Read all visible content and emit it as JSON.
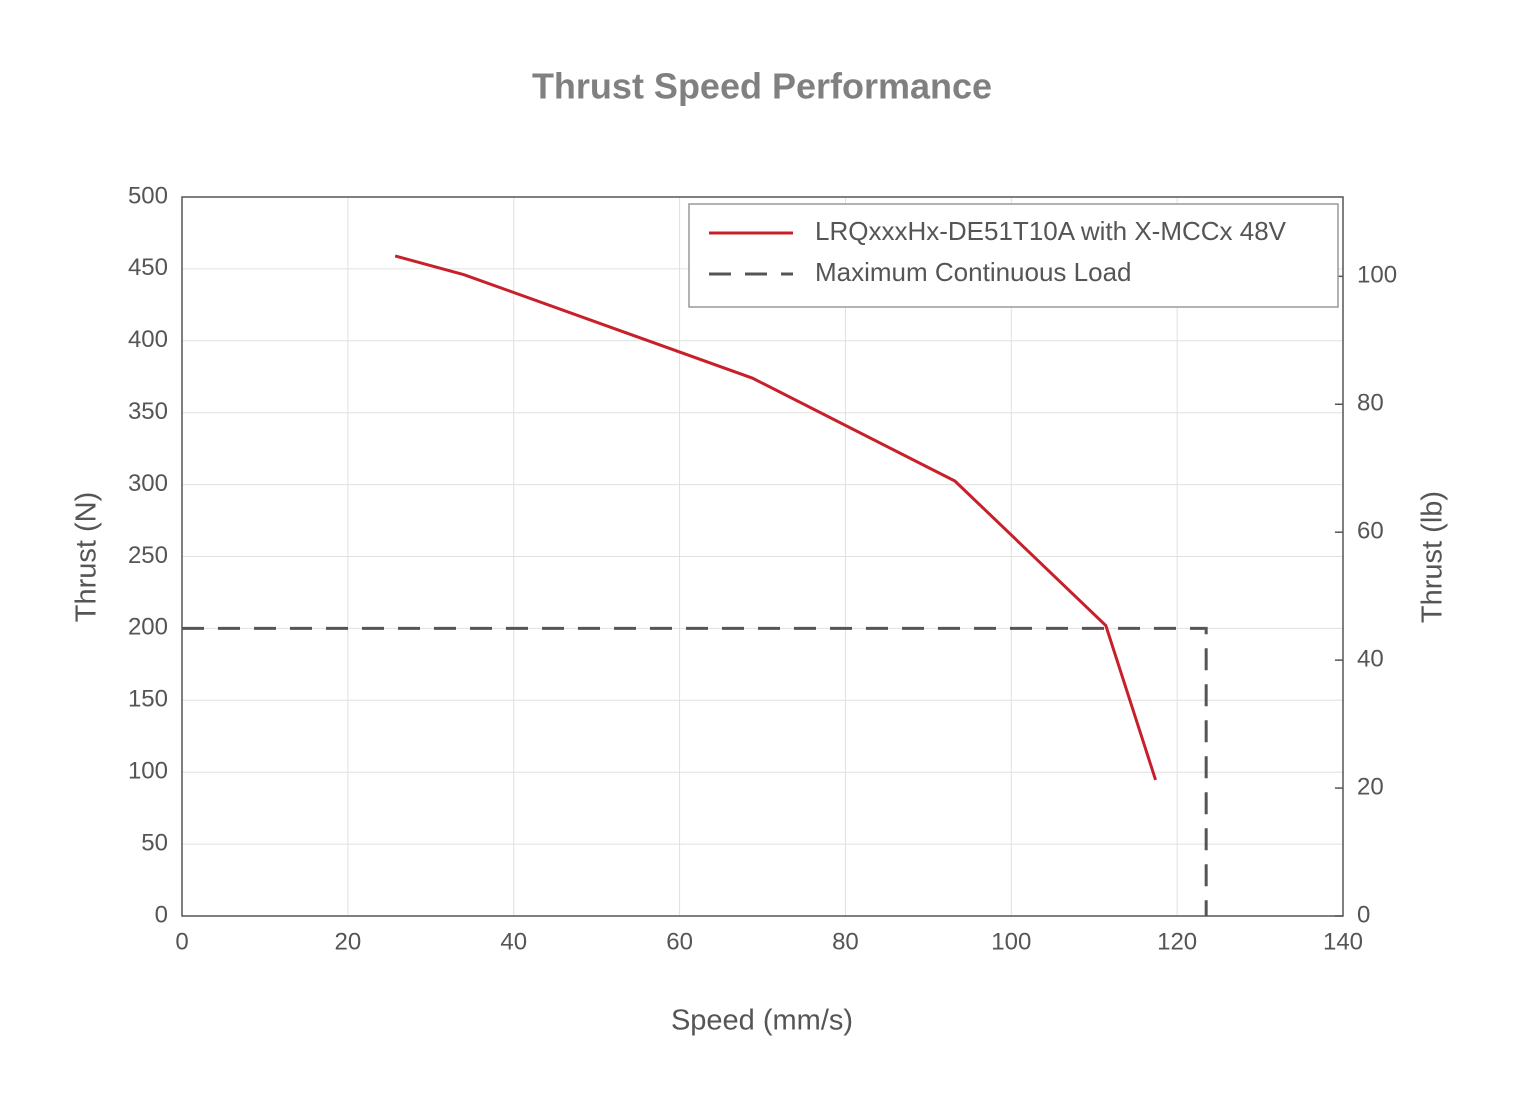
{
  "chart_data": {
    "type": "line",
    "title": "Thrust Speed Performance",
    "x_label": "Speed (mm/s)",
    "y_label": "Thrust (N)",
    "y2_label": "Thrust (lb)",
    "xlim": [
      0,
      140
    ],
    "xticks": [
      0,
      20,
      40,
      60,
      80,
      100,
      120,
      140
    ],
    "ylim": [
      0,
      500
    ],
    "yticks": [
      0,
      50,
      100,
      150,
      200,
      250,
      300,
      350,
      400,
      450,
      500
    ],
    "y2lim": [
      0,
      112.4
    ],
    "y2ticks": [
      0,
      20,
      40,
      60,
      80,
      100
    ],
    "grid": true,
    "legend": "upper right",
    "series": [
      {
        "name": "LRQxxxHx-DE51T10A with X-MCCx 48V",
        "color": "#c8202a",
        "style": "solid",
        "x": [
          25.7,
          34,
          68.8,
          93.2,
          111.4,
          117.4
        ],
        "values": [
          459,
          446,
          374,
          302.5,
          202,
          94.6
        ]
      },
      {
        "name": "Maximum Continuous Load",
        "color": "#555555",
        "style": "dashed",
        "x": [
          0,
          123.5,
          123.5
        ],
        "values": [
          200,
          200,
          0
        ]
      }
    ]
  }
}
